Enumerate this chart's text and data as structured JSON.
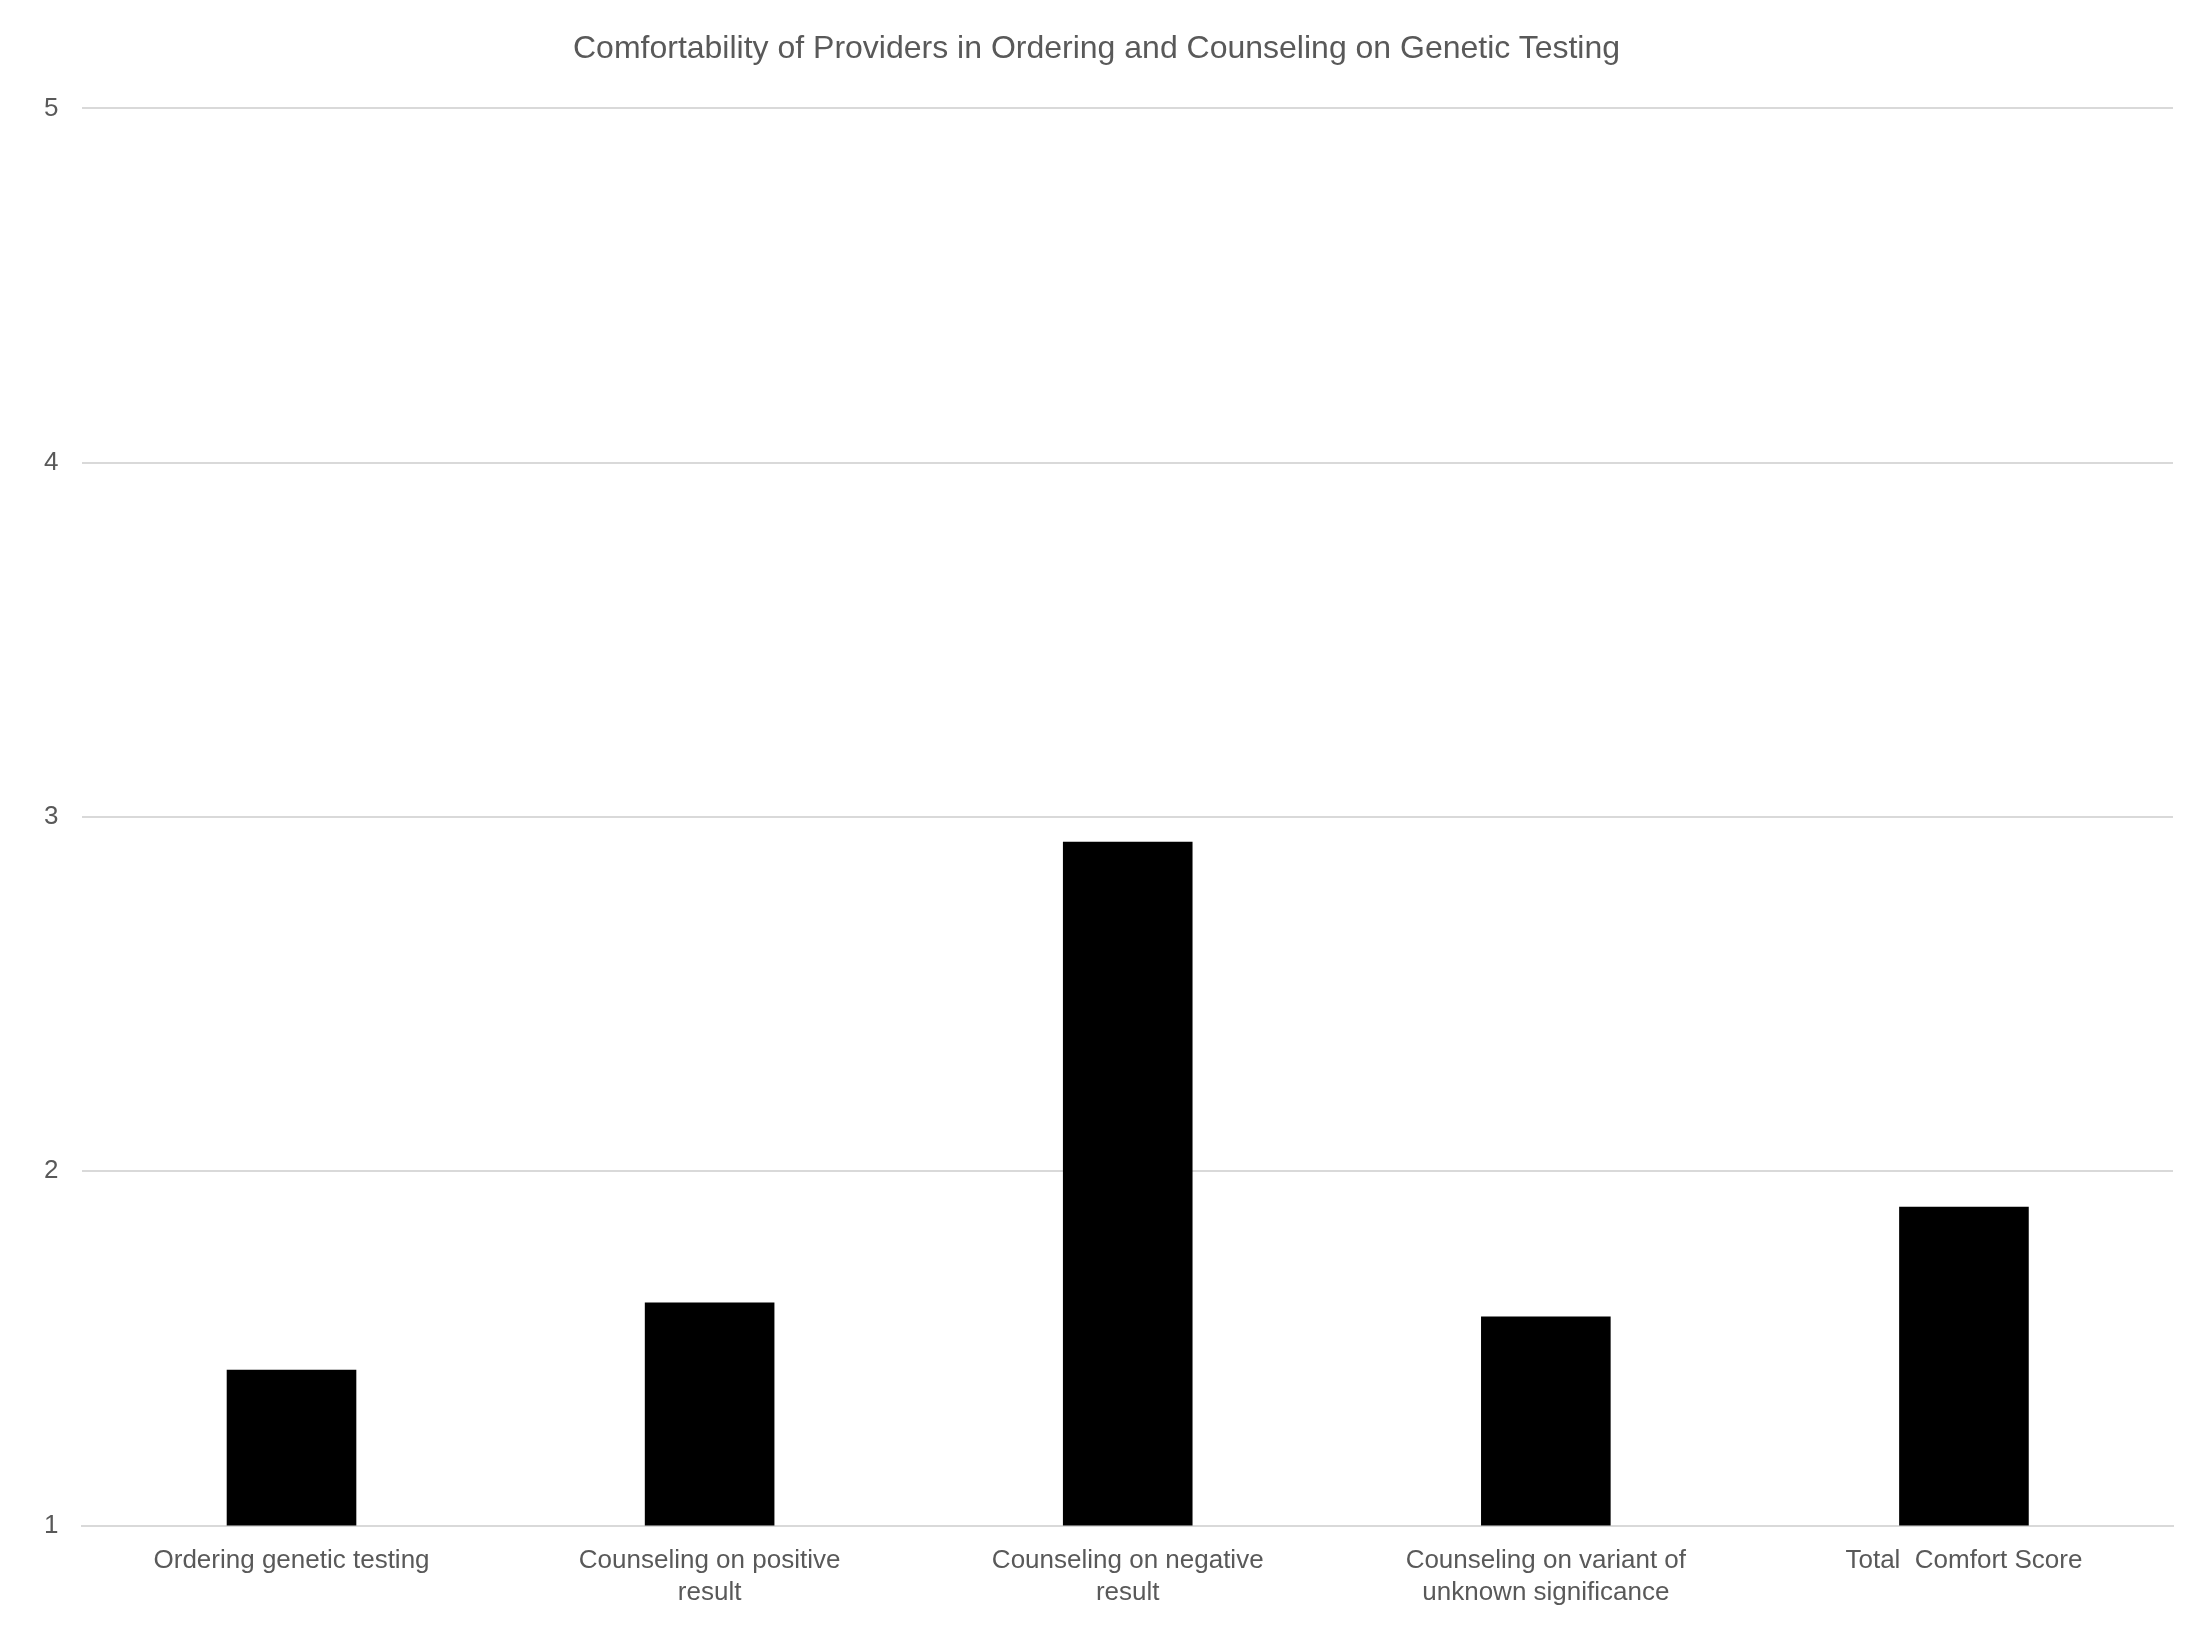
{
  "chart_data": {
    "type": "bar",
    "title": "Comfortability of Providers in Ordering and Counseling on Genetic Testing",
    "categories": [
      "Ordering genetic testing",
      "Counseling on positive result",
      "Counseling on negative result",
      "Counseling on variant of unknown significance",
      "Total  Comfort Score"
    ],
    "values": [
      1.44,
      1.63,
      2.93,
      1.59,
      1.9
    ],
    "color": "#000000",
    "ylim": [
      1,
      5
    ],
    "yticks": [
      1,
      2,
      3,
      4,
      5
    ],
    "grid": "y",
    "legend": false
  }
}
